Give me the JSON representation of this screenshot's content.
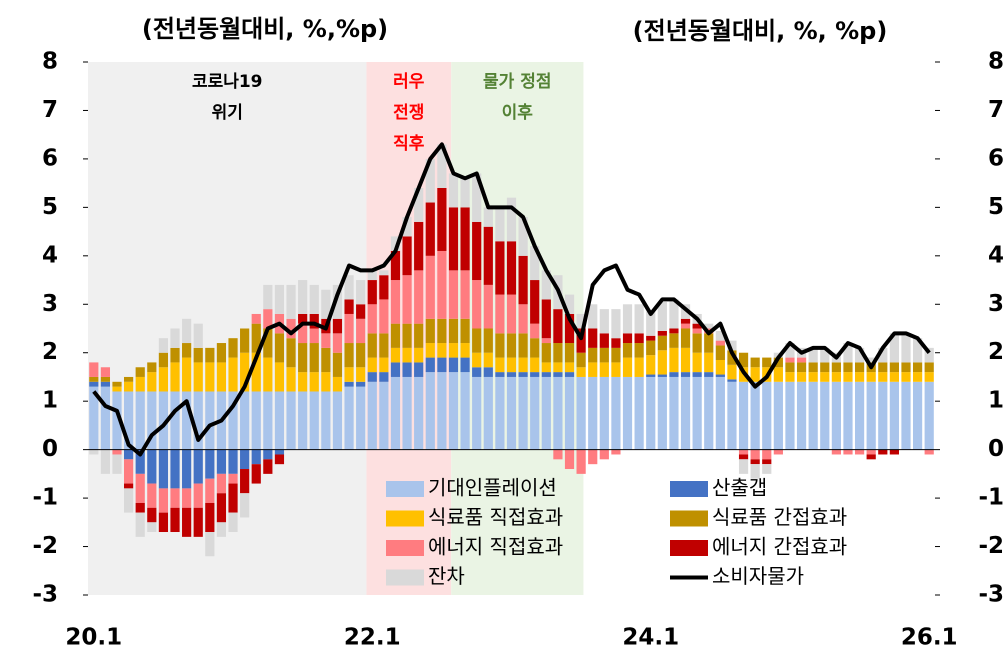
{
  "chart_data": {
    "type": "stacked_bar_line",
    "y_title": "(전년동월대비, %,%p)",
    "y2_title": "(전년동월대비, %, %p)",
    "categories": [
      "20.1",
      null,
      null,
      null,
      null,
      null,
      null,
      null,
      null,
      null,
      null,
      null,
      null,
      null,
      null,
      null,
      null,
      null,
      null,
      null,
      null,
      null,
      null,
      null,
      "22.1",
      null,
      null,
      null,
      null,
      null,
      null,
      null,
      null,
      null,
      null,
      null,
      null,
      null,
      null,
      null,
      null,
      null,
      null,
      null,
      null,
      null,
      null,
      null,
      "24.1",
      null,
      null,
      null,
      null,
      null,
      null,
      null,
      null,
      null,
      null,
      null,
      null,
      null,
      null,
      null,
      null,
      null,
      null,
      null,
      null,
      null,
      null,
      null,
      "26.1"
    ],
    "ylim": [
      -3,
      8
    ],
    "yticks": [
      -3,
      -2,
      -1,
      0,
      1,
      2,
      3,
      4,
      5,
      6,
      7,
      8
    ],
    "y2lim": [
      -3,
      8
    ],
    "y2ticks": [
      -3,
      -2,
      -1,
      0,
      1,
      2,
      3,
      4,
      5,
      6,
      7,
      8
    ],
    "periods": [
      {
        "lines": [
          "코로나19",
          "위기"
        ],
        "start": 0,
        "end": 24,
        "color": "#f0f0f0",
        "text_color": "#000000"
      },
      {
        "lines": [
          "러우",
          "전쟁",
          "직후"
        ],
        "start": 24,
        "end": 31.3,
        "color": "#fde0e0",
        "text_color": "#ff0000"
      },
      {
        "lines": [
          "물가 정점",
          "이후"
        ],
        "start": 31.3,
        "end": 42.7,
        "color": "#eaf4e4",
        "text_color": "#548235"
      }
    ],
    "series": [
      {
        "name": "기대인플레이션",
        "color": "#a9c4eb",
        "values": [
          1.3,
          1.3,
          1.2,
          1.2,
          1.2,
          1.2,
          1.2,
          1.2,
          1.2,
          1.2,
          1.2,
          1.2,
          1.2,
          1.2,
          1.2,
          1.2,
          1.2,
          1.2,
          1.2,
          1.2,
          1.2,
          1.2,
          1.3,
          1.3,
          1.4,
          1.4,
          1.5,
          1.5,
          1.5,
          1.6,
          1.6,
          1.6,
          1.6,
          1.5,
          1.5,
          1.5,
          1.5,
          1.5,
          1.5,
          1.5,
          1.5,
          1.5,
          1.5,
          1.5,
          1.5,
          1.5,
          1.5,
          1.5,
          1.5,
          1.5,
          1.5,
          1.5,
          1.5,
          1.5,
          1.5,
          1.4,
          1.4,
          1.4,
          1.4,
          1.4,
          1.4,
          1.4,
          1.4,
          1.4,
          1.4,
          1.4,
          1.4,
          1.4,
          1.4,
          1.4,
          1.4,
          1.4,
          1.4
        ]
      },
      {
        "name": "산출갭",
        "color": "#4472c4",
        "values": [
          0.1,
          0.1,
          0,
          -0.2,
          -0.5,
          -0.7,
          -0.8,
          -0.8,
          -0.8,
          -0.7,
          -0.6,
          -0.5,
          -0.5,
          -0.4,
          -0.3,
          -0.2,
          -0.1,
          0,
          0,
          0,
          0,
          0,
          0.1,
          0.1,
          0.2,
          0.2,
          0.3,
          0.3,
          0.3,
          0.3,
          0.3,
          0.3,
          0.3,
          0.2,
          0.2,
          0.1,
          0.1,
          0.1,
          0.1,
          0.1,
          0.1,
          0.1,
          0,
          0,
          0,
          0,
          0,
          0,
          0.05,
          0.05,
          0.1,
          0.1,
          0.1,
          0.1,
          0.05,
          0.05,
          0,
          0,
          0,
          0,
          0,
          0,
          0,
          0,
          0,
          0,
          0,
          0,
          0,
          0,
          0,
          0,
          0
        ]
      },
      {
        "name": "식료품 직접효과",
        "color": "#ffc000",
        "values": [
          0,
          0,
          0.1,
          0.2,
          0.3,
          0.4,
          0.5,
          0.6,
          0.7,
          0.6,
          0.6,
          0.6,
          0.7,
          0.8,
          0.8,
          0.7,
          0.6,
          0.5,
          0.4,
          0.4,
          0.4,
          0.3,
          0.3,
          0.3,
          0.3,
          0.3,
          0.3,
          0.3,
          0.3,
          0.3,
          0.3,
          0.3,
          0.3,
          0.3,
          0.3,
          0.3,
          0.3,
          0.3,
          0.3,
          0.2,
          0.2,
          0.2,
          0.2,
          0.3,
          0.3,
          0.3,
          0.4,
          0.4,
          0.4,
          0.5,
          0.5,
          0.5,
          0.4,
          0.4,
          0.3,
          0.3,
          0.3,
          0.3,
          0.3,
          0.3,
          0.2,
          0.2,
          0.2,
          0.2,
          0.2,
          0.2,
          0.2,
          0.2,
          0.2,
          0.2,
          0.2,
          0.2,
          0.2
        ]
      },
      {
        "name": "식료품 간접효과",
        "color": "#bf9000",
        "values": [
          0.1,
          0.1,
          0.1,
          0.1,
          0.2,
          0.2,
          0.3,
          0.3,
          0.3,
          0.3,
          0.3,
          0.4,
          0.4,
          0.5,
          0.6,
          0.6,
          0.6,
          0.6,
          0.6,
          0.6,
          0.5,
          0.5,
          0.5,
          0.5,
          0.5,
          0.5,
          0.5,
          0.5,
          0.5,
          0.5,
          0.5,
          0.5,
          0.5,
          0.5,
          0.5,
          0.5,
          0.5,
          0.5,
          0.4,
          0.4,
          0.4,
          0.4,
          0.3,
          0.3,
          0.3,
          0.3,
          0.3,
          0.3,
          0.3,
          0.3,
          0.3,
          0.4,
          0.4,
          0.4,
          0.3,
          0.3,
          0.3,
          0.2,
          0.2,
          0.2,
          0.2,
          0.2,
          0.2,
          0.2,
          0.2,
          0.2,
          0.2,
          0.2,
          0.2,
          0.2,
          0.2,
          0.2,
          0.2
        ]
      },
      {
        "name": "에너지 직접효과",
        "color": "#ff7c80",
        "values": [
          0.3,
          0.2,
          -0.1,
          -0.5,
          -0.6,
          -0.5,
          -0.5,
          -0.4,
          -0.4,
          -0.5,
          -0.5,
          -0.4,
          -0.2,
          0,
          0.2,
          0.4,
          0.4,
          0.4,
          0.4,
          0.3,
          0.3,
          0.4,
          0.6,
          0.5,
          0.6,
          0.7,
          0.9,
          1.0,
          1.1,
          1.3,
          1.4,
          1.0,
          1.0,
          1.0,
          0.9,
          0.8,
          0.8,
          0.6,
          0.3,
          0.1,
          -0.2,
          -0.4,
          -0.5,
          -0.3,
          -0.2,
          -0.1,
          0,
          0,
          0,
          0,
          0,
          0.1,
          0.1,
          0.1,
          0.1,
          0,
          -0.1,
          -0.2,
          -0.2,
          -0.1,
          0.1,
          0.1,
          0,
          0,
          -0.1,
          -0.1,
          -0.1,
          -0.1,
          0,
          0,
          0,
          0,
          -0.1
        ]
      },
      {
        "name": "에너지 간접효과",
        "color": "#c00000",
        "values": [
          0,
          0,
          0,
          -0.1,
          -0.2,
          -0.3,
          -0.4,
          -0.5,
          -0.6,
          -0.6,
          -0.6,
          -0.6,
          -0.6,
          -0.5,
          -0.4,
          -0.3,
          -0.2,
          0,
          0.2,
          0.3,
          0.3,
          0.3,
          0.3,
          0.3,
          0.5,
          0.5,
          0.6,
          0.8,
          1.0,
          1.1,
          1.3,
          1.3,
          1.3,
          1.2,
          1.2,
          1.1,
          1.1,
          1.0,
          0.9,
          0.8,
          0.7,
          0.6,
          0.5,
          0.4,
          0.3,
          0.2,
          0.2,
          0.2,
          0.1,
          0.1,
          0.1,
          0.1,
          0.1,
          0,
          0,
          0,
          -0.1,
          -0.1,
          -0.1,
          0,
          0,
          0,
          0,
          0,
          0,
          0,
          0,
          -0.1,
          -0.1,
          -0.1,
          0,
          0,
          0
        ]
      },
      {
        "name": "잔차",
        "color": "#d9d9d9",
        "values": [
          -0.1,
          -0.5,
          -0.4,
          -0.5,
          -0.5,
          -0.2,
          0.3,
          0.4,
          0.5,
          0.5,
          -0.5,
          -0.3,
          -0.4,
          -0.5,
          0,
          0.5,
          0.6,
          0.7,
          0.7,
          0.6,
          0.6,
          0.7,
          0.5,
          0.5,
          0.2,
          0.1,
          0.3,
          0.4,
          0.7,
          0.9,
          0.9,
          0.7,
          0.6,
          1.0,
          0.4,
          0.7,
          0.9,
          0.8,
          0.7,
          0.6,
          0.7,
          0.4,
          0.3,
          0.5,
          0.5,
          0.6,
          0.6,
          0.6,
          0.5,
          0.6,
          0.6,
          0.3,
          0.2,
          0.1,
          0.2,
          0.2,
          -0.3,
          -0.3,
          -0.2,
          0.1,
          0.3,
          0.2,
          0.3,
          0.3,
          0.2,
          0.4,
          0.3,
          0.1,
          0.3,
          0.6,
          0.6,
          0.5,
          0.3
        ]
      },
      {
        "name": "소비자물가",
        "color": "#000000",
        "kind": "line",
        "values": [
          1.2,
          0.9,
          0.8,
          0.1,
          -0.1,
          0.3,
          0.5,
          0.8,
          1.0,
          0.2,
          0.5,
          0.6,
          0.9,
          1.3,
          1.9,
          2.5,
          2.6,
          2.4,
          2.6,
          2.6,
          2.5,
          3.2,
          3.8,
          3.7,
          3.7,
          3.8,
          4.1,
          4.8,
          5.4,
          6.0,
          6.3,
          5.7,
          5.6,
          5.7,
          5.0,
          5.0,
          5.0,
          4.8,
          4.2,
          3.7,
          3.3,
          2.7,
          2.3,
          3.4,
          3.7,
          3.8,
          3.3,
          3.2,
          2.8,
          3.1,
          3.1,
          2.9,
          2.7,
          2.4,
          2.6,
          2.0,
          1.6,
          1.3,
          1.5,
          1.9,
          2.2,
          2.0,
          2.1,
          2.1,
          1.9,
          2.2,
          2.1,
          1.7,
          2.1,
          2.4,
          2.4,
          2.3,
          2.0
        ]
      }
    ]
  }
}
